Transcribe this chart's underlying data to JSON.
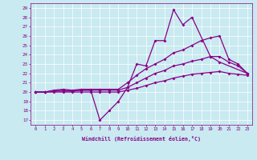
{
  "xlabel": "Windchill (Refroidissement éolien,°C)",
  "xlim": [
    -0.5,
    23.5
  ],
  "ylim": [
    16.5,
    29.5
  ],
  "yticks": [
    17,
    18,
    19,
    20,
    21,
    22,
    23,
    24,
    25,
    26,
    27,
    28,
    29
  ],
  "xticks": [
    0,
    1,
    2,
    3,
    4,
    5,
    6,
    7,
    8,
    9,
    10,
    11,
    12,
    13,
    14,
    15,
    16,
    17,
    18,
    19,
    20,
    21,
    22,
    23
  ],
  "bg_color": "#c8eaf0",
  "line_color": "#880088",
  "curve1_x": [
    0,
    1,
    2,
    3,
    4,
    5,
    6,
    7,
    8,
    9,
    10,
    11,
    12,
    13,
    14,
    15,
    16,
    17,
    19,
    20,
    23
  ],
  "curve1_y": [
    20,
    20,
    20.1,
    20.2,
    20.1,
    20.2,
    20.2,
    17.0,
    18.0,
    19.0,
    20.5,
    23.0,
    22.8,
    25.5,
    25.5,
    28.8,
    27.2,
    28.0,
    23.8,
    23.2,
    22.0
  ],
  "curve2_x": [
    0,
    1,
    2,
    3,
    4,
    5,
    6,
    7,
    8,
    9,
    10,
    11,
    12,
    13,
    14,
    15,
    16,
    17,
    18,
    19,
    20,
    21,
    22,
    23
  ],
  "curve2_y": [
    20,
    20,
    20.2,
    20.3,
    20.2,
    20.3,
    20.3,
    20.3,
    20.3,
    20.3,
    21.0,
    21.8,
    22.5,
    23.0,
    23.5,
    24.2,
    24.5,
    25.0,
    25.5,
    25.8,
    26.0,
    23.5,
    23.0,
    22.0
  ],
  "curve3_x": [
    0,
    1,
    2,
    3,
    4,
    5,
    6,
    7,
    8,
    9,
    10,
    11,
    12,
    13,
    14,
    15,
    16,
    17,
    18,
    19,
    20,
    21,
    22,
    23
  ],
  "curve3_y": [
    20,
    20,
    20.1,
    20.1,
    20.1,
    20.2,
    20.2,
    20.2,
    20.2,
    20.2,
    20.5,
    21.0,
    21.5,
    22.0,
    22.3,
    22.8,
    23.0,
    23.3,
    23.5,
    23.8,
    23.8,
    23.2,
    22.8,
    22.0
  ],
  "curve4_x": [
    0,
    1,
    2,
    3,
    4,
    5,
    6,
    7,
    8,
    9,
    10,
    11,
    12,
    13,
    14,
    15,
    16,
    17,
    18,
    19,
    20,
    21,
    22,
    23
  ],
  "curve4_y": [
    20,
    20,
    20.0,
    20.0,
    20.0,
    20.0,
    20.0,
    20.0,
    20.0,
    20.0,
    20.2,
    20.4,
    20.7,
    21.0,
    21.2,
    21.5,
    21.7,
    21.9,
    22.0,
    22.1,
    22.2,
    22.0,
    21.9,
    21.8
  ]
}
